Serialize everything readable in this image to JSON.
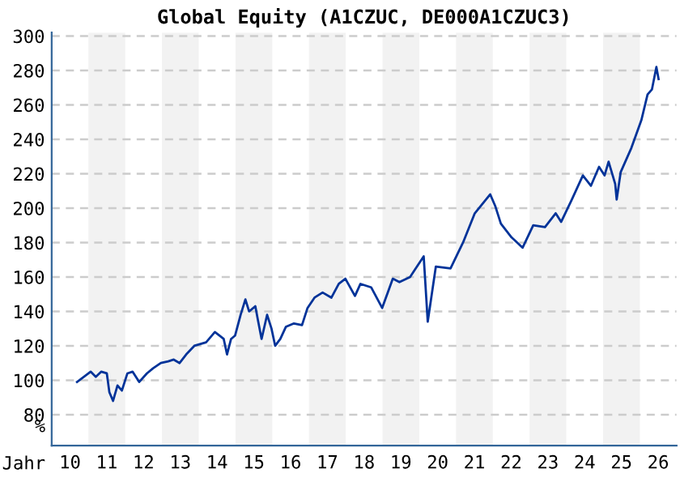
{
  "chart_data": {
    "type": "line",
    "title": "Global Equity (A1CZUC, DE000A1CZUC3)",
    "xlabel": "Jahr",
    "ylabel": "%",
    "series": [
      {
        "color": "#003399",
        "x": [
          10.19,
          10.56,
          10.7,
          10.85,
          11.0,
          11.07,
          11.17,
          11.29,
          11.41,
          11.56,
          11.7,
          11.88,
          12.09,
          12.26,
          12.47,
          12.67,
          12.82,
          12.98,
          13.16,
          13.38,
          13.7,
          13.94,
          14.18,
          14.27,
          14.38,
          14.49,
          14.64,
          14.77,
          14.87,
          15.04,
          15.11,
          15.21,
          15.36,
          15.48,
          15.58,
          15.72,
          15.87,
          16.09,
          16.31,
          16.46,
          16.65,
          16.87,
          17.11,
          17.31,
          17.49,
          17.75,
          17.9,
          18.19,
          18.49,
          18.78,
          18.96,
          19.25,
          19.62,
          19.73,
          19.95,
          20.35,
          20.69,
          21.01,
          21.43,
          21.57,
          21.72,
          22.01,
          22.31,
          22.6,
          22.92,
          23.21,
          23.36,
          23.65,
          23.95,
          24.17,
          24.39,
          24.54,
          24.65,
          24.83,
          24.87,
          24.98,
          25.27,
          25.54,
          25.71,
          25.83,
          25.95,
          26.01
        ],
        "values": [
          99,
          105,
          102,
          105,
          104,
          93,
          88,
          97,
          94,
          104,
          105,
          99,
          104,
          107,
          110,
          111,
          112,
          110,
          115,
          120,
          122,
          128,
          124,
          115,
          124,
          126,
          138,
          147,
          140,
          143,
          135,
          124,
          138,
          130,
          120,
          124,
          131,
          133,
          132,
          142,
          148,
          151,
          148,
          156,
          159,
          149,
          156,
          154,
          142,
          159,
          157,
          160,
          172,
          134,
          166,
          165,
          180,
          197,
          208,
          201,
          191,
          183,
          177,
          190,
          189,
          197,
          192,
          205,
          219,
          213,
          224,
          219,
          227,
          214,
          205,
          221,
          235,
          251,
          266,
          269,
          282,
          275
        ]
      }
    ],
    "xlim": [
      9.5,
      26.5
    ],
    "xticks": [
      10,
      11,
      12,
      13,
      14,
      15,
      16,
      17,
      18,
      19,
      20,
      21,
      22,
      23,
      24,
      25,
      26
    ],
    "ylim": [
      62,
      302
    ],
    "yticks": [
      80,
      100,
      120,
      140,
      160,
      180,
      200,
      220,
      240,
      260,
      280,
      300
    ],
    "bands": [
      {
        "axis": "x",
        "from": 10.5,
        "to": 11.5,
        "color": "#f2f2f2"
      },
      {
        "axis": "x",
        "from": 12.5,
        "to": 13.5,
        "color": "#f2f2f2"
      },
      {
        "axis": "x",
        "from": 14.5,
        "to": 15.5,
        "color": "#f2f2f2"
      },
      {
        "axis": "x",
        "from": 16.5,
        "to": 17.5,
        "color": "#f2f2f2"
      },
      {
        "axis": "x",
        "from": 18.5,
        "to": 19.5,
        "color": "#f2f2f2"
      },
      {
        "axis": "x",
        "from": 20.5,
        "to": 21.5,
        "color": "#f2f2f2"
      },
      {
        "axis": "x",
        "from": 22.5,
        "to": 23.5,
        "color": "#f2f2f2"
      },
      {
        "axis": "x",
        "from": 24.5,
        "to": 25.5,
        "color": "#f2f2f2"
      }
    ],
    "grid": "y",
    "line_style": "solid",
    "marker": "none"
  }
}
